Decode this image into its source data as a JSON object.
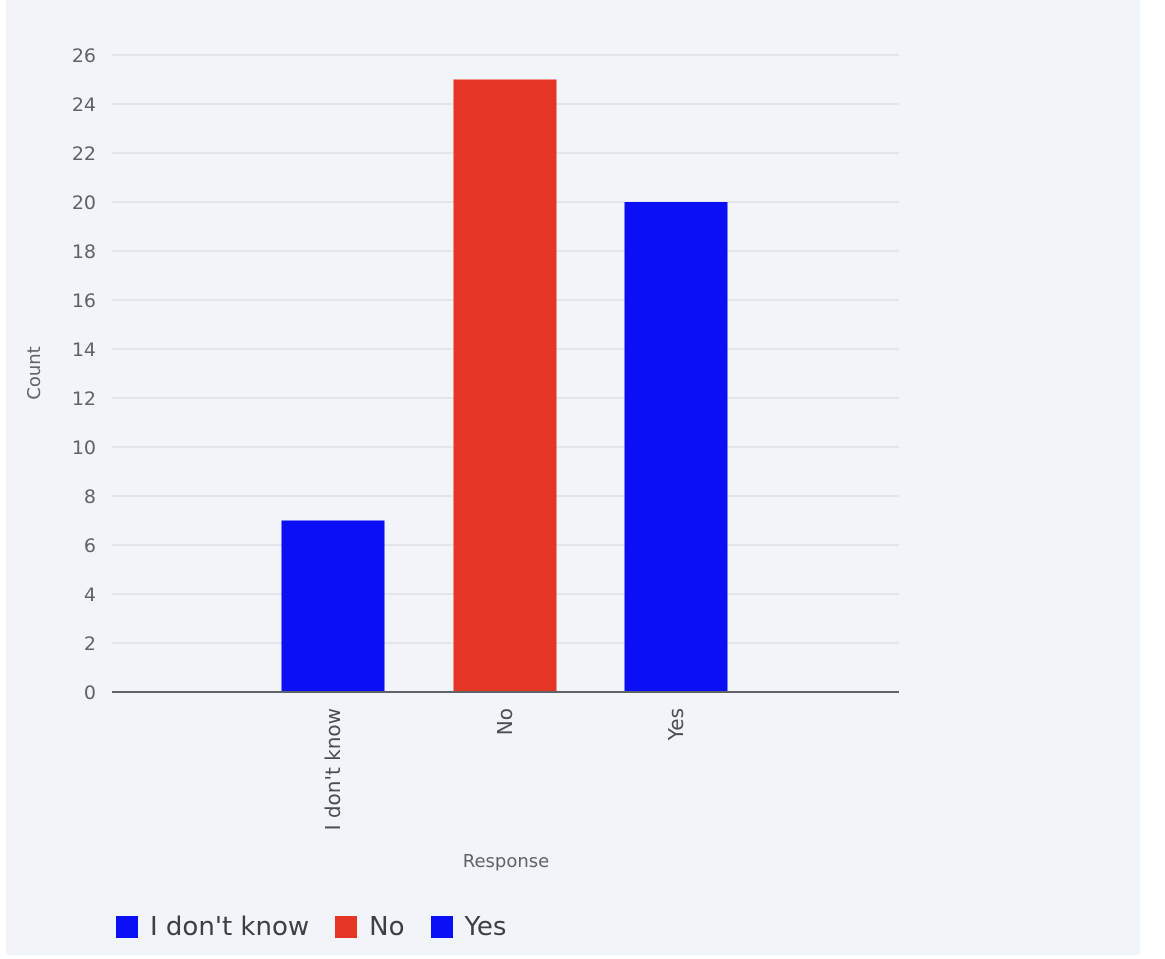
{
  "chart_data": {
    "type": "bar",
    "categories": [
      "I don't know",
      "No",
      "Yes"
    ],
    "values": [
      7,
      25,
      20
    ],
    "colors": [
      "#0a0ff5",
      "#e53524",
      "#0a0ff5"
    ],
    "xlabel": "Response",
    "ylabel": "Count",
    "ylim": [
      0,
      26
    ],
    "yticks": [
      0,
      2,
      4,
      6,
      8,
      10,
      12,
      14,
      16,
      18,
      20,
      22,
      24,
      26
    ],
    "grid": true,
    "legend_position": "bottom-left",
    "legend": [
      {
        "label": "I don't know",
        "color": "#0a0ff5"
      },
      {
        "label": "No",
        "color": "#e53524"
      },
      {
        "label": "Yes",
        "color": "#0a0ff5"
      }
    ]
  }
}
